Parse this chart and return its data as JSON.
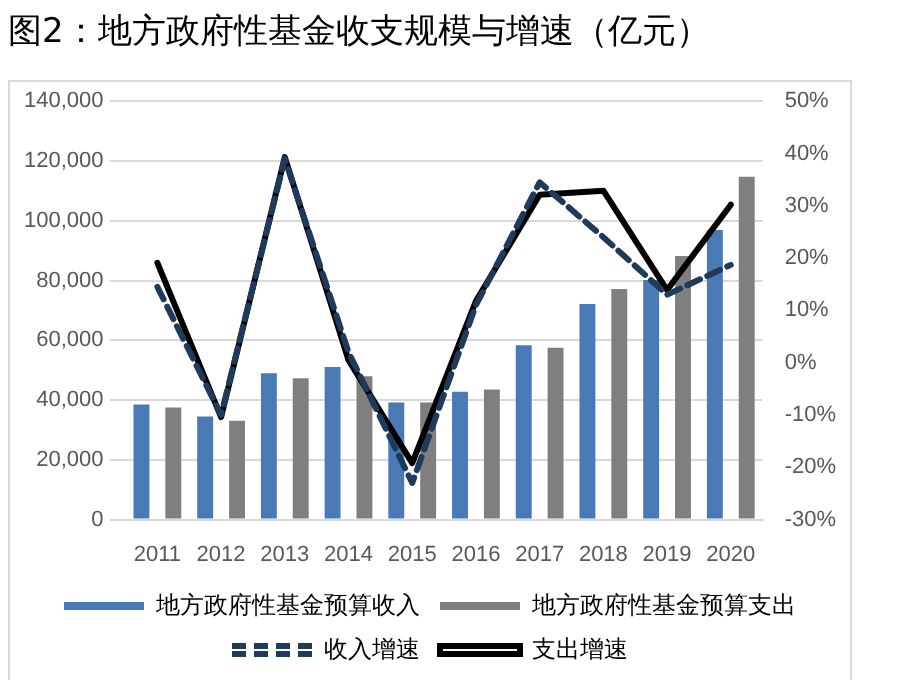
{
  "chart_data": {
    "type": "bar",
    "title": "图2：地方政府性基金收支规模与增速（亿元）",
    "categories": [
      "2011",
      "2012",
      "2013",
      "2014",
      "2015",
      "2016",
      "2017",
      "2018",
      "2019",
      "2020"
    ],
    "series": [
      {
        "name": "地方政府性基金预算收入",
        "color": "#4a7ab5",
        "values": [
          38500,
          34500,
          49000,
          51100,
          39200,
          42800,
          58300,
          72100,
          80200,
          96900
        ]
      },
      {
        "name": "地方政府性基金预算支出",
        "color": "#7f7f7f",
        "values": [
          37500,
          33100,
          47300,
          48000,
          39200,
          43500,
          57500,
          77200,
          88200,
          114700
        ]
      },
      {
        "name": "收入增速",
        "type": "line",
        "axis": "y2",
        "color": "#1f3a5a",
        "line_style": "dashed",
        "values": [
          14.5,
          -10,
          39,
          2,
          -23,
          11,
          34.5,
          24,
          13,
          18.7
        ]
      },
      {
        "name": "支出增速",
        "type": "line",
        "axis": "y2",
        "color": "#000000",
        "line_style": "solid",
        "values": [
          19.1,
          -10.4,
          39.3,
          0.5,
          -19.2,
          11.8,
          32.1,
          32.9,
          13.9,
          30.2
        ]
      }
    ],
    "ylim": [
      0,
      140000
    ],
    "yticks": [
      {
        "value": 0,
        "label": "0"
      },
      {
        "value": 20000,
        "label": "20,000"
      },
      {
        "value": 40000,
        "label": "40,000"
      },
      {
        "value": 60000,
        "label": "60,000"
      },
      {
        "value": 80000,
        "label": "80,000"
      },
      {
        "value": 100000,
        "label": "100,000"
      },
      {
        "value": 120000,
        "label": "120,000"
      },
      {
        "value": 140000,
        "label": "140,000"
      }
    ],
    "y2lim": [
      -30,
      50
    ],
    "y2ticks": [
      {
        "value": -30,
        "label": "-30%"
      },
      {
        "value": -20,
        "label": "-20%"
      },
      {
        "value": -10,
        "label": "-10%"
      },
      {
        "value": 0,
        "label": "0%"
      },
      {
        "value": 10,
        "label": "10%"
      },
      {
        "value": 20,
        "label": "20%"
      },
      {
        "value": 30,
        "label": "30%"
      },
      {
        "value": 40,
        "label": "40%"
      },
      {
        "value": 50,
        "label": "50%"
      }
    ],
    "grid": "y",
    "legend": "bottom",
    "marker": "none"
  }
}
